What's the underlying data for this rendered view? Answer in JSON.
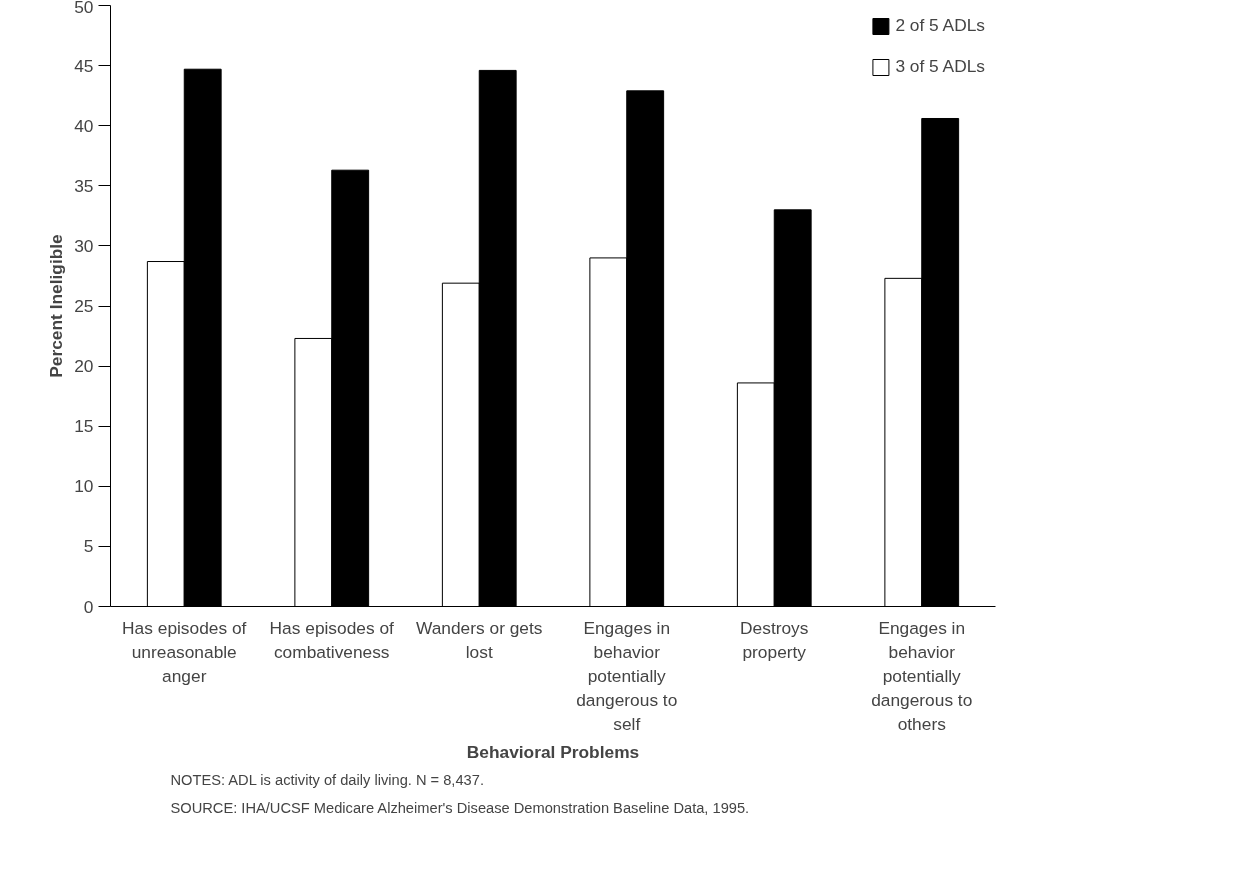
{
  "chart_data": {
    "type": "bar",
    "categories": [
      "Has episodes of unreasonable anger",
      "Has episodes of combativeness",
      "Wanders or gets lost",
      "Engages in behavior potentially dangerous to self",
      "Destroys property",
      "Engages in behavior potentially dangerous to others"
    ],
    "series": [
      {
        "name": "3 of 5 ADLs",
        "color": "#ffffff",
        "values": [
          28.7,
          22.3,
          26.9,
          29.0,
          18.6,
          27.3
        ]
      },
      {
        "name": "2 of 5 ADLs",
        "color": "#000000",
        "values": [
          44.7,
          36.3,
          44.6,
          42.9,
          33.0,
          40.6
        ]
      }
    ],
    "xlabel": "Behavioral Problems",
    "ylabel": "Percent Ineligible",
    "ylim": [
      0,
      50
    ],
    "yticks": [
      0,
      5,
      10,
      15,
      20,
      25,
      30,
      35,
      40,
      45,
      50
    ],
    "grid": false,
    "legend": "top right",
    "annotations": [
      "NOTES: ADL is activity of daily living. N = 8,437.",
      "SOURCE: IHA/UCSF Medicare Alzheimer's Disease Demonstration Baseline Data, 1995."
    ]
  }
}
